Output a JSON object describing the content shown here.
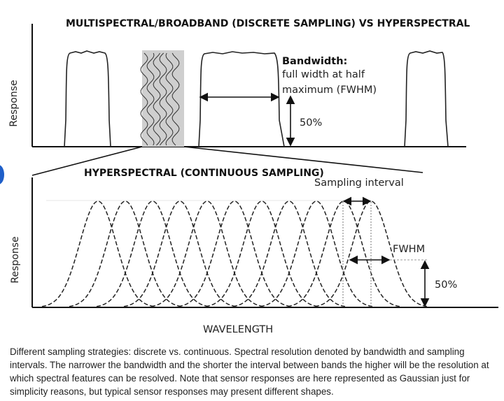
{
  "top_panel": {
    "title": "MULTISPECTRAL/BROADBAND (DISCRETE SAMPLING) VS HYPERSPECTRAL",
    "y_label": "Response",
    "bandwidth_title": "Bandwidth:",
    "bandwidth_line1": "full width at half",
    "bandwidth_line2": "maximum (FWHM)",
    "half_label": "50%"
  },
  "bottom_panel": {
    "title": "HYPERSPECTRAL (CONTINUOUS SAMPLING)",
    "y_label": "Response",
    "sampling_label": "Sampling interval",
    "fwhm_label": "FWHM",
    "half_label": "50%",
    "x_label": "WAVELENGTH",
    "band_count": 11
  },
  "caption": "Different sampling strategies: discrete vs. continuous. Spectral resolution denoted by bandwidth and sampling intervals. The narrower the bandwidth and the shorter the interval between bands the higher will be the resolution at which spectral features can be resolved. Note that sensor responses are here represented as Gaussian just for simplicity reasons, but typical sensor responses may present different shapes.",
  "colors": {
    "ink": "#111111",
    "highlight_gray": "#cfcfcf",
    "accent_dot": "#1f5fc9"
  }
}
